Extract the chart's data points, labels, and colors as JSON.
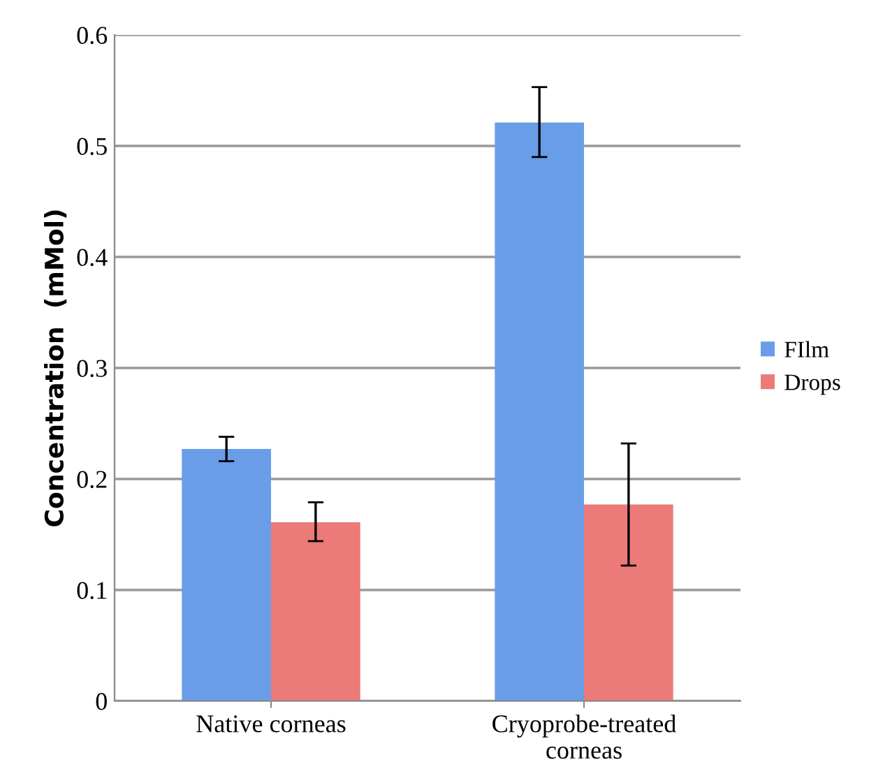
{
  "chart_data": {
    "type": "bar",
    "ylabel": "Concentration  (mMol)",
    "categories": [
      "Native corneas",
      "Cryoprobe-treated\ncorneas"
    ],
    "series": [
      {
        "name": "FIlm",
        "color": "#6a9de8",
        "values": [
          0.227,
          0.521
        ],
        "errors": [
          [
            0.216,
            0.238
          ],
          [
            0.49,
            0.553
          ]
        ]
      },
      {
        "name": "Drops",
        "color": "#ec7a78",
        "values": [
          0.161,
          0.177
        ],
        "errors": [
          [
            0.144,
            0.179
          ],
          [
            0.122,
            0.232
          ]
        ]
      }
    ],
    "ylim": [
      0,
      0.6
    ],
    "yticks": [
      0,
      0.1,
      0.2,
      0.3,
      0.4,
      0.5,
      0.6
    ],
    "grid": "y",
    "legend": "right"
  }
}
